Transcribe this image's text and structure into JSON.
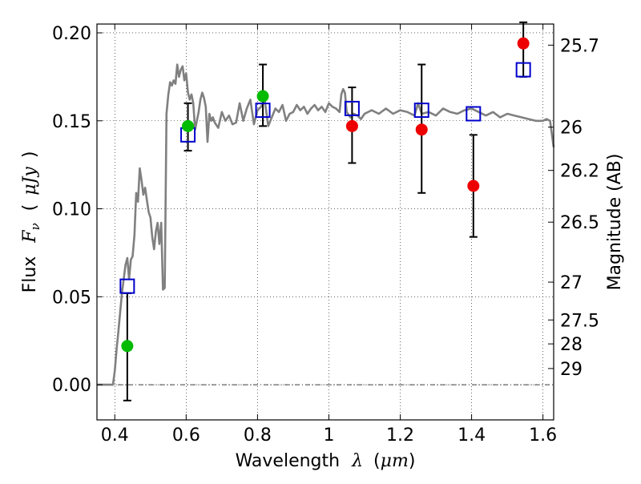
{
  "chart_data": {
    "type": "scatter",
    "title": "",
    "xlabel": {
      "text": "Wavelength",
      "symbol": "λ",
      "unit_open": "(",
      "unit": "μm",
      "unit_close": ")"
    },
    "ylabel": {
      "text": "Flux",
      "symbol": "F",
      "subscript": "ν",
      "unit_open": "(",
      "unit": "μJy",
      "unit_close": ")"
    },
    "y2label": "Magnitude (AB)",
    "xlim": [
      0.35,
      1.63
    ],
    "ylim": [
      -0.02,
      0.205
    ],
    "grid": true,
    "grid_style": "dotted",
    "xticks": [
      0.4,
      0.6,
      0.8,
      1.0,
      1.2,
      1.4,
      1.6
    ],
    "xtick_labels": [
      "0.4",
      "0.6",
      "0.8",
      "1",
      "1.2",
      "1.4",
      "1.6"
    ],
    "yticks": [
      0.0,
      0.05,
      0.1,
      0.15,
      0.2
    ],
    "ytick_labels": [
      "0.00",
      "0.05",
      "0.10",
      "0.15",
      "0.20"
    ],
    "y2ticks": [
      {
        "label": "25.7",
        "flux": 0.193
      },
      {
        "label": "26",
        "flux": 0.1464
      },
      {
        "label": "26.2",
        "flux": 0.1218
      },
      {
        "label": "26.5",
        "flux": 0.0924
      },
      {
        "label": "27",
        "flux": 0.0583
      },
      {
        "label": "27.5",
        "flux": 0.0368
      },
      {
        "label": "28",
        "flux": 0.0232
      },
      {
        "label": "29",
        "flux": 0.0092
      }
    ],
    "zero_line": {
      "y": 0.0,
      "style": "dash-dot"
    },
    "colors": {
      "sed": "#808080",
      "model": "#0000cc",
      "detection": "#00bb00",
      "lowsn": "#ee0000",
      "errorbar": "#000000"
    },
    "series": [
      {
        "kind": "line",
        "color": "#808080",
        "x": [
          0.35,
          0.395,
          0.4,
          0.405,
          0.41,
          0.415,
          0.42,
          0.425,
          0.43,
          0.435,
          0.44,
          0.445,
          0.45,
          0.455,
          0.46,
          0.465,
          0.47,
          0.475,
          0.48,
          0.485,
          0.49,
          0.495,
          0.5,
          0.505,
          0.51,
          0.515,
          0.52,
          0.525,
          0.53,
          0.535,
          0.54,
          0.545,
          0.55,
          0.555,
          0.56,
          0.565,
          0.57,
          0.575,
          0.58,
          0.585,
          0.59,
          0.595,
          0.6,
          0.605,
          0.61,
          0.615,
          0.62,
          0.625,
          0.63,
          0.635,
          0.64,
          0.645,
          0.65,
          0.655,
          0.66,
          0.665,
          0.67,
          0.675,
          0.68,
          0.69,
          0.7,
          0.71,
          0.72,
          0.73,
          0.74,
          0.75,
          0.76,
          0.77,
          0.78,
          0.79,
          0.8,
          0.81,
          0.82,
          0.83,
          0.84,
          0.85,
          0.86,
          0.87,
          0.88,
          0.89,
          0.9,
          0.91,
          0.92,
          0.93,
          0.94,
          0.95,
          0.96,
          0.97,
          0.98,
          0.99,
          1.0,
          1.01,
          1.02,
          1.03,
          1.035,
          1.04,
          1.045,
          1.05,
          1.06,
          1.07,
          1.08,
          1.09,
          1.1,
          1.12,
          1.14,
          1.16,
          1.18,
          1.2,
          1.22,
          1.24,
          1.25,
          1.26,
          1.28,
          1.3,
          1.32,
          1.34,
          1.36,
          1.38,
          1.4,
          1.42,
          1.44,
          1.46,
          1.48,
          1.5,
          1.52,
          1.54,
          1.56,
          1.58,
          1.6,
          1.61,
          1.62,
          1.63
        ],
        "y": [
          0.0,
          0.0,
          0.008,
          0.02,
          0.03,
          0.041,
          0.052,
          0.06,
          0.068,
          0.072,
          0.06,
          0.071,
          0.073,
          0.085,
          0.109,
          0.104,
          0.123,
          0.116,
          0.108,
          0.112,
          0.105,
          0.098,
          0.095,
          0.084,
          0.077,
          0.087,
          0.092,
          0.08,
          0.092,
          0.054,
          0.055,
          0.154,
          0.165,
          0.172,
          0.17,
          0.173,
          0.171,
          0.182,
          0.175,
          0.179,
          0.181,
          0.173,
          0.177,
          0.166,
          0.162,
          0.165,
          0.16,
          0.145,
          0.15,
          0.155,
          0.162,
          0.166,
          0.163,
          0.158,
          0.138,
          0.154,
          0.15,
          0.152,
          0.149,
          0.146,
          0.155,
          0.15,
          0.153,
          0.148,
          0.149,
          0.16,
          0.15,
          0.157,
          0.162,
          0.148,
          0.156,
          0.158,
          0.162,
          0.147,
          0.152,
          0.157,
          0.155,
          0.159,
          0.15,
          0.154,
          0.155,
          0.159,
          0.156,
          0.158,
          0.154,
          0.157,
          0.159,
          0.156,
          0.158,
          0.155,
          0.16,
          0.158,
          0.157,
          0.155,
          0.165,
          0.168,
          0.166,
          0.155,
          0.152,
          0.154,
          0.153,
          0.151,
          0.154,
          0.156,
          0.154,
          0.157,
          0.154,
          0.156,
          0.155,
          0.153,
          0.16,
          0.154,
          0.155,
          0.153,
          0.157,
          0.155,
          0.154,
          0.156,
          0.157,
          0.155,
          0.153,
          0.155,
          0.152,
          0.154,
          0.153,
          0.152,
          0.151,
          0.15,
          0.15,
          0.151,
          0.15,
          0.135
        ]
      },
      {
        "kind": "model_points",
        "marker": "open-square",
        "color": "#0000cc",
        "x": [
          0.435,
          0.605,
          0.815,
          1.065,
          1.26,
          1.405,
          1.545
        ],
        "y": [
          0.056,
          0.142,
          0.156,
          0.157,
          0.156,
          0.154,
          0.179
        ]
      },
      {
        "kind": "observed_detections",
        "marker": "filled-circle",
        "color": "#00bb00",
        "x": [
          0.435,
          0.605,
          0.815
        ],
        "y": [
          0.022,
          0.147,
          0.164
        ]
      },
      {
        "kind": "observed_low_sn",
        "marker": "filled-circle",
        "color": "#ee0000",
        "x": [
          1.065,
          1.26,
          1.405,
          1.545
        ],
        "y": [
          0.147,
          0.145,
          0.113,
          0.194
        ]
      },
      {
        "kind": "errorbars",
        "color": "#000000",
        "x": [
          0.435,
          0.605,
          0.815,
          1.065,
          1.26,
          1.405,
          1.545
        ],
        "ylow": [
          -0.009,
          0.133,
          0.147,
          0.126,
          0.109,
          0.084,
          0.175
        ],
        "yhigh": [
          0.052,
          0.16,
          0.182,
          0.169,
          0.182,
          0.142,
          0.206
        ]
      }
    ]
  }
}
